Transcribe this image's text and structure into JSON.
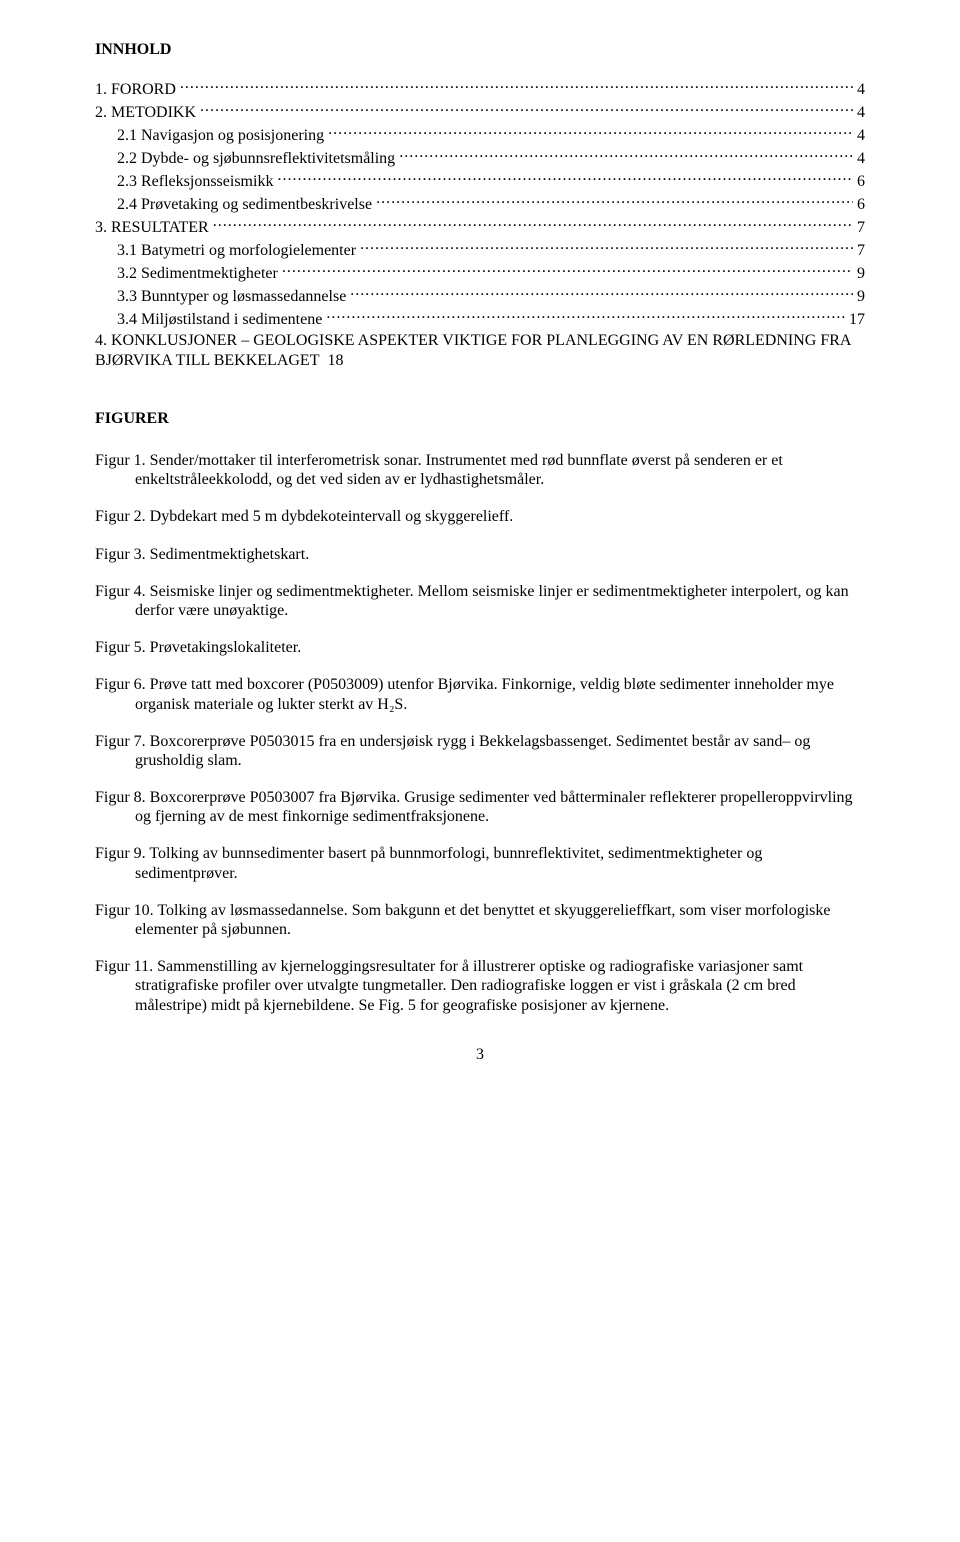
{
  "toc": {
    "heading": "INNHOLD",
    "entries": [
      {
        "indent": 0,
        "label": "1.  FORORD",
        "page": "4"
      },
      {
        "indent": 0,
        "label": "2.  METODIKK",
        "page": "4"
      },
      {
        "indent": 1,
        "label": "2.1  Navigasjon og posisjonering",
        "page": "4"
      },
      {
        "indent": 1,
        "label": "2.2  Dybde- og sjøbunnsreflektivitetsmåling",
        "page": "4"
      },
      {
        "indent": 1,
        "label": "2.3  Refleksjonsseismikk",
        "page": "6"
      },
      {
        "indent": 1,
        "label": "2.4  Prøvetaking og sedimentbeskrivelse",
        "page": "6"
      },
      {
        "indent": 0,
        "label": "3.  RESULTATER",
        "page": "7"
      },
      {
        "indent": 1,
        "label": "3.1  Batymetri og morfologielementer",
        "page": "7"
      },
      {
        "indent": 1,
        "label": "3.2  Sedimentmektigheter",
        "page": "9"
      },
      {
        "indent": 1,
        "label": "3.3  Bunntyper og løsmassedannelse",
        "page": "9"
      },
      {
        "indent": 1,
        "label": "3.4  Miljøstilstand i sedimentene",
        "page": "17"
      },
      {
        "indent": 0,
        "label": "4.  KONKLUSJONER – GEOLOGISKE ASPEKTER VIKTIGE FOR PLANLEGGING AV EN RØRLEDNING FRA BJØRVIKA TILL BEKKELAGET",
        "page": "18",
        "wrap": true
      }
    ]
  },
  "figures": {
    "heading": "FIGURER",
    "items": [
      "Figur 1. Sender/mottaker til interferometrisk sonar. Instrumentet med rød bunnflate øverst på senderen er et enkeltstråleekkolodd, og det ved siden av er lydhastighetsmåler.",
      "Figur 2. Dybdekart med 5 m dybdekoteintervall og skyggerelieff.",
      "Figur 3. Sedimentmektighetskart.",
      "Figur 4. Seismiske linjer og sedimentmektigheter. Mellom seismiske linjer er sedimentmektigheter interpolert, og kan derfor være unøyaktige.",
      "Figur 5. Prøvetakingslokaliteter.",
      "Figur 6. Prøve tatt med boxcorer (P0503009) utenfor Bjørvika. Finkornige, veldig bløte sedimenter inneholder mye organisk materiale og lukter sterkt av H₂S.",
      "Figur 7. Boxcorerprøve P0503015 fra en  undersjøisk rygg i Bekkelagsbassenget. Sedimentet består av sand– og grusholdig slam.",
      "Figur 8. Boxcorerprøve P0503007 fra Bjørvika. Grusige sedimenter ved båtterminaler reflekterer propelleroppvirvling og fjerning av de mest finkornige sedimentfraksjonene.",
      "Figur 9. Tolking av bunnsedimenter basert på bunnmorfologi, bunnreflektivitet, sedimentmektigheter og sedimentprøver.",
      "Figur 10. Tolking av løsmassedannelse. Som bakgunn et det benyttet et skyuggerelieffkart, som viser morfologiske elementer på  sjøbunnen.",
      "Figur 11. Sammenstilling av kjerneloggingsresultater for å illustrerer optiske og radiografiske variasjoner samt stratigrafiske profiler over utvalgte tungmetaller. Den radiografiske loggen er vist i gråskala (2 cm bred målestripe) midt på kjernebildene. Se Fig. 5 for geografiske posisjoner av kjernene."
    ]
  },
  "pageNumber": "3",
  "style": {
    "fontFamily": "Times New Roman",
    "textColor": "#000000",
    "backgroundColor": "#ffffff",
    "bodyFontSize": 16,
    "pageWidth": 960,
    "pageHeight": 1542
  }
}
